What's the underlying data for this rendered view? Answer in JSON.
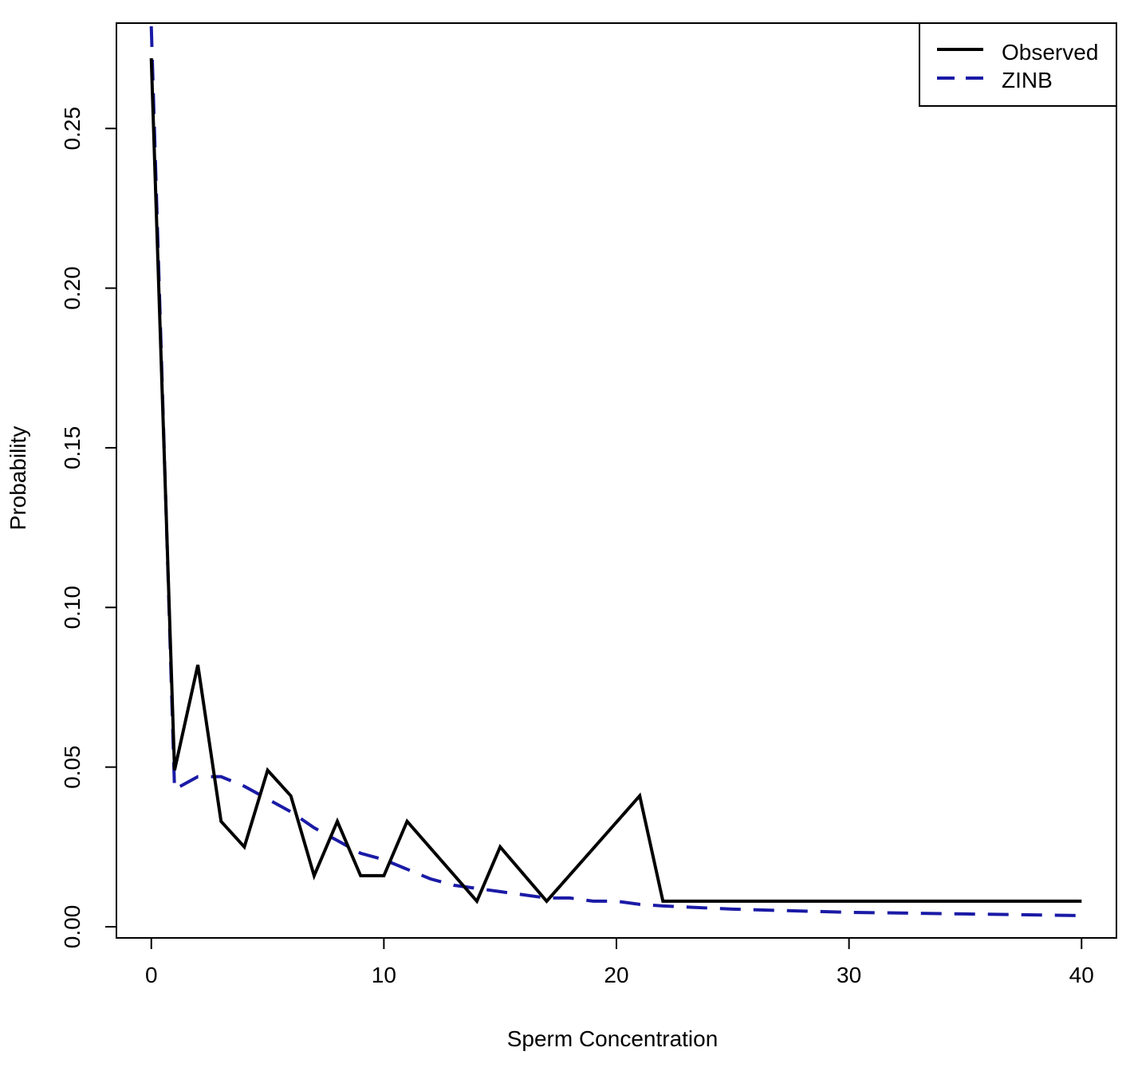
{
  "chart_data": {
    "type": "line",
    "title": "",
    "xlabel": "Sperm Concentration",
    "ylabel": "Probability",
    "xlim": [
      -1.5,
      41.5
    ],
    "ylim": [
      -0.0035,
      0.283
    ],
    "xticks": [
      0,
      10,
      20,
      30,
      40
    ],
    "xtick_labels": [
      "0",
      "10",
      "20",
      "30",
      "40"
    ],
    "yticks": [
      0.0,
      0.05,
      0.1,
      0.15,
      0.2,
      0.25
    ],
    "ytick_labels": [
      "0.00",
      "0.05",
      "0.10",
      "0.15",
      "0.20",
      "0.25"
    ],
    "grid": false,
    "legend_position": "top-right",
    "series": [
      {
        "name": "Observed",
        "color": "#000000",
        "style": "solid",
        "x": [
          0,
          1,
          2,
          3,
          4,
          5,
          6,
          7,
          8,
          9,
          10,
          11,
          14,
          15,
          17,
          21,
          22,
          40
        ],
        "y": [
          0.272,
          0.049,
          0.082,
          0.033,
          0.025,
          0.049,
          0.041,
          0.016,
          0.033,
          0.016,
          0.016,
          0.033,
          0.008,
          0.025,
          0.008,
          0.041,
          0.008,
          0.008
        ]
      },
      {
        "name": "ZINB",
        "color": "#1a1aa6",
        "style": "dashed",
        "x": [
          0,
          1,
          2,
          3,
          4,
          5,
          6,
          7,
          8,
          9,
          10,
          11,
          12,
          13,
          14,
          15,
          16,
          17,
          18,
          19,
          20,
          21,
          22,
          25,
          30,
          35,
          40
        ],
        "y": [
          0.282,
          0.043,
          0.047,
          0.047,
          0.044,
          0.04,
          0.036,
          0.031,
          0.027,
          0.023,
          0.021,
          0.018,
          0.015,
          0.013,
          0.012,
          0.011,
          0.01,
          0.009,
          0.009,
          0.008,
          0.008,
          0.007,
          0.0065,
          0.0055,
          0.0045,
          0.004,
          0.0035
        ]
      }
    ]
  }
}
